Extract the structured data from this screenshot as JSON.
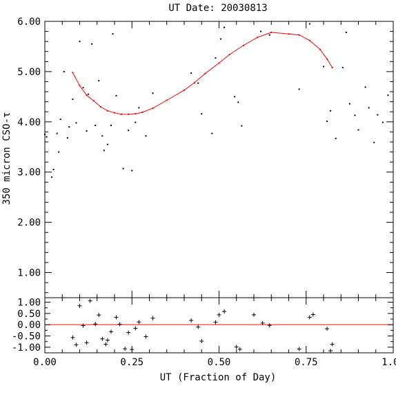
{
  "chart_data": [
    {
      "panel": "main",
      "type": "scatter",
      "title": "UT Date: 20030813",
      "ylabel": "350 micron CSO-τ",
      "xlim": [
        0.0,
        1.0
      ],
      "ylim": [
        0.5,
        6.0
      ],
      "yticks": [
        "1.00",
        "2.00",
        "3.00",
        "4.00",
        "5.00",
        "6.00"
      ],
      "marker_color": "#000000",
      "fit_color": "#ff0000",
      "points": [
        [
          0.0,
          3.75
        ],
        [
          0.005,
          3.7
        ],
        [
          0.02,
          2.9
        ],
        [
          0.025,
          3.05
        ],
        [
          0.035,
          3.77
        ],
        [
          0.04,
          3.4
        ],
        [
          0.045,
          4.05
        ],
        [
          0.055,
          5.0
        ],
        [
          0.065,
          3.68
        ],
        [
          0.07,
          3.9
        ],
        [
          0.08,
          4.45
        ],
        [
          0.09,
          3.98
        ],
        [
          0.1,
          5.6
        ],
        [
          0.11,
          4.68
        ],
        [
          0.12,
          3.82
        ],
        [
          0.125,
          4.55
        ],
        [
          0.135,
          5.55
        ],
        [
          0.145,
          3.93
        ],
        [
          0.155,
          4.82
        ],
        [
          0.165,
          3.72
        ],
        [
          0.17,
          3.43
        ],
        [
          0.18,
          3.55
        ],
        [
          0.19,
          3.93
        ],
        [
          0.195,
          5.75
        ],
        [
          0.205,
          4.52
        ],
        [
          0.225,
          3.07
        ],
        [
          0.24,
          3.83
        ],
        [
          0.25,
          3.03
        ],
        [
          0.26,
          3.99
        ],
        [
          0.27,
          4.28
        ],
        [
          0.29,
          3.72
        ],
        [
          0.31,
          4.57
        ],
        [
          0.42,
          4.97
        ],
        [
          0.44,
          4.77
        ],
        [
          0.45,
          4.16
        ],
        [
          0.48,
          3.77
        ],
        [
          0.49,
          5.27
        ],
        [
          0.505,
          5.65
        ],
        [
          0.515,
          5.88
        ],
        [
          0.545,
          4.5
        ],
        [
          0.555,
          4.39
        ],
        [
          0.565,
          3.92
        ],
        [
          0.62,
          5.8
        ],
        [
          0.645,
          5.73
        ],
        [
          0.73,
          4.65
        ],
        [
          0.76,
          5.95
        ],
        [
          0.8,
          5.1
        ],
        [
          0.81,
          4.01
        ],
        [
          0.82,
          4.22
        ],
        [
          0.835,
          3.67
        ],
        [
          0.855,
          5.08
        ],
        [
          0.865,
          5.78
        ],
        [
          0.875,
          4.36
        ],
        [
          0.89,
          4.13
        ],
        [
          0.9,
          3.84
        ],
        [
          0.92,
          4.69
        ],
        [
          0.93,
          4.28
        ],
        [
          0.945,
          3.59
        ],
        [
          0.955,
          4.14
        ],
        [
          0.97,
          3.99
        ],
        [
          0.985,
          4.53
        ]
      ],
      "fit_line": [
        [
          0.08,
          4.98
        ],
        [
          0.1,
          4.72
        ],
        [
          0.12,
          4.53
        ],
        [
          0.14,
          4.42
        ],
        [
          0.16,
          4.3
        ],
        [
          0.18,
          4.22
        ],
        [
          0.2,
          4.18
        ],
        [
          0.22,
          4.15
        ],
        [
          0.24,
          4.15
        ],
        [
          0.26,
          4.16
        ],
        [
          0.28,
          4.19
        ],
        [
          0.31,
          4.27
        ],
        [
          0.35,
          4.43
        ],
        [
          0.4,
          4.63
        ],
        [
          0.43,
          4.78
        ],
        [
          0.46,
          4.96
        ],
        [
          0.5,
          5.17
        ],
        [
          0.53,
          5.34
        ],
        [
          0.57,
          5.52
        ],
        [
          0.61,
          5.68
        ],
        [
          0.65,
          5.78
        ],
        [
          0.7,
          5.75
        ],
        [
          0.73,
          5.73
        ],
        [
          0.76,
          5.62
        ],
        [
          0.79,
          5.44
        ],
        [
          0.81,
          5.25
        ],
        [
          0.825,
          5.08
        ]
      ]
    },
    {
      "panel": "residuals",
      "type": "scatter",
      "xlabel": "UT (Fraction of Day)",
      "xlim": [
        0.0,
        1.0
      ],
      "ylim": [
        -1.25,
        1.2
      ],
      "yticks": [
        "-1.00",
        "-0.50",
        "0.00",
        "0.50",
        "1.00"
      ],
      "xticks": [
        "0.00",
        "0.25",
        "0.50",
        "0.75",
        "1.00"
      ],
      "marker_color": "#000000",
      "zero_line_color": "#ff0000",
      "points": [
        [
          0.08,
          -0.57
        ],
        [
          0.09,
          -0.89
        ],
        [
          0.1,
          0.84
        ],
        [
          0.11,
          -0.04
        ],
        [
          0.12,
          -0.8
        ],
        [
          0.13,
          1.06
        ],
        [
          0.145,
          0.03
        ],
        [
          0.155,
          0.43
        ],
        [
          0.165,
          -0.63
        ],
        [
          0.175,
          -0.87
        ],
        [
          0.18,
          -0.69
        ],
        [
          0.19,
          -0.31
        ],
        [
          0.205,
          0.33
        ],
        [
          0.215,
          0.02
        ],
        [
          0.23,
          -1.07
        ],
        [
          0.24,
          -0.35
        ],
        [
          0.25,
          -1.1
        ],
        [
          0.26,
          -0.16
        ],
        [
          0.27,
          0.12
        ],
        [
          0.29,
          -0.53
        ],
        [
          0.31,
          0.29
        ],
        [
          0.42,
          0.19
        ],
        [
          0.44,
          -0.1
        ],
        [
          0.45,
          -0.73
        ],
        [
          0.49,
          0.11
        ],
        [
          0.5,
          0.44
        ],
        [
          0.515,
          0.59
        ],
        [
          0.55,
          -0.99
        ],
        [
          0.56,
          -1.09
        ],
        [
          0.6,
          0.44
        ],
        [
          0.625,
          0.07
        ],
        [
          0.645,
          -0.03
        ],
        [
          0.73,
          -1.08
        ],
        [
          0.76,
          0.33
        ],
        [
          0.77,
          0.45
        ],
        [
          0.81,
          -0.18
        ],
        [
          0.82,
          -1.16
        ],
        [
          0.825,
          -0.87
        ]
      ]
    }
  ]
}
